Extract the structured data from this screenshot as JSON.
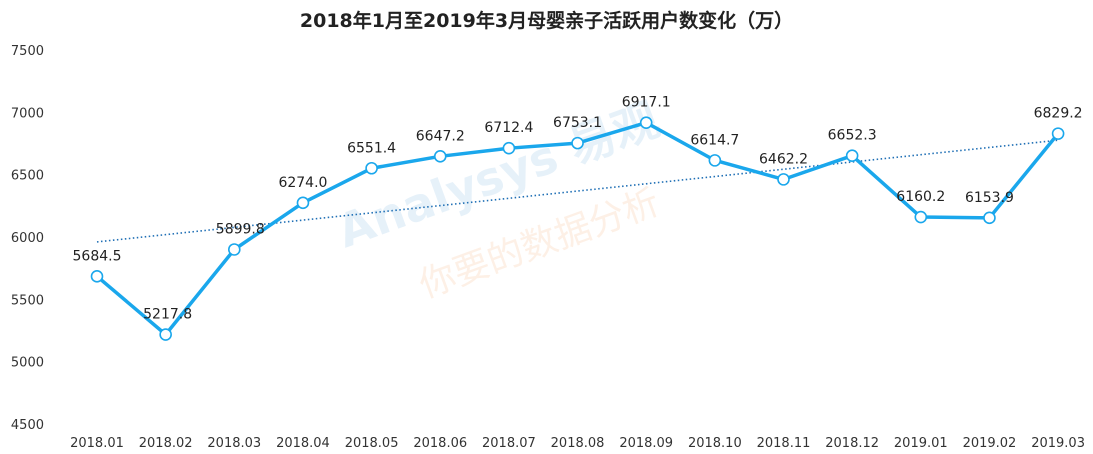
{
  "chart_data": {
    "type": "line",
    "title": "2018年1月至2019年3月母婴亲子活跃用户数变化（万）",
    "categories": [
      "2018.01",
      "2018.02",
      "2018.03",
      "2018.04",
      "2018.05",
      "2018.06",
      "2018.07",
      "2018.08",
      "2018.09",
      "2018.10",
      "2018.11",
      "2018.12",
      "2019.01",
      "2019.02",
      "2019.03"
    ],
    "series": [
      {
        "name": "母婴亲子活跃用户数",
        "values": [
          5684.5,
          5217.8,
          5899.8,
          6274.0,
          6551.4,
          6647.2,
          6712.4,
          6753.1,
          6917.1,
          6614.7,
          6462.2,
          6652.3,
          6160.2,
          6153.9,
          6829.2
        ],
        "labels": [
          "5684.5",
          "5217.8",
          "5899.8",
          "6274.0",
          "6551.4",
          "6647.2",
          "6712.4",
          "6753.1",
          "6917.1",
          "6614.7",
          "6462.2",
          "6652.3",
          "6160.2",
          "6153.9",
          "6829.2"
        ],
        "color": "#1aa7ec"
      }
    ],
    "trendline": {
      "type": "linear",
      "style": "dotted",
      "color": "#1f6fb5"
    },
    "yticks": [
      "4500",
      "5000",
      "5500",
      "6000",
      "6500",
      "7000",
      "7500"
    ],
    "ylim": [
      4500,
      7500
    ],
    "xlabel": "",
    "ylabel": "",
    "grid": false
  },
  "watermark": {
    "brand": "Analysys 易观",
    "slogan": "你要的数据分析"
  }
}
